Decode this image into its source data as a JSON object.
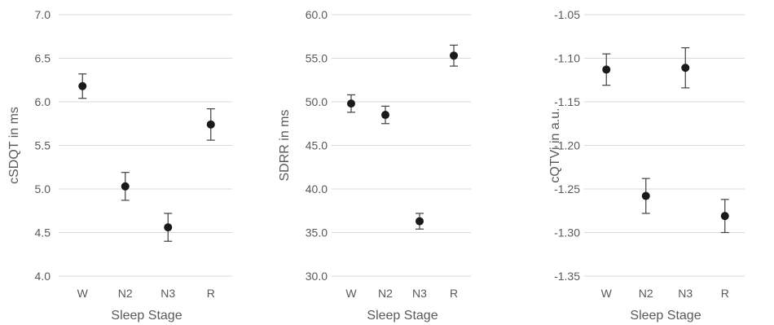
{
  "chart_data": [
    {
      "type": "scatter",
      "categories": [
        "W",
        "N2",
        "N3",
        "R"
      ],
      "values": [
        6.18,
        5.03,
        4.56,
        5.74
      ],
      "errors": [
        0.14,
        0.16,
        0.16,
        0.18
      ],
      "ylim": [
        4.0,
        7.0
      ],
      "ytick_step": 0.5,
      "ytick_labels": [
        "4.0",
        "4.5",
        "5.0",
        "5.5",
        "6.0",
        "6.5",
        "7.0"
      ],
      "xlabel": "Sleep Stage",
      "ylabel": "cSDQT in ms",
      "grid": true,
      "marker_color": "#1a1a1a"
    },
    {
      "type": "scatter",
      "categories": [
        "W",
        "N2",
        "N3",
        "R"
      ],
      "values": [
        49.8,
        48.5,
        36.3,
        55.3
      ],
      "errors": [
        1.0,
        1.0,
        0.9,
        1.2
      ],
      "ylim": [
        30.0,
        60.0
      ],
      "ytick_step": 5,
      "ytick_labels": [
        "30.0",
        "35.0",
        "40.0",
        "45.0",
        "50.0",
        "55.0",
        "60.0"
      ],
      "xlabel": "Sleep Stage",
      "ylabel": "SDRR in ms",
      "grid": true,
      "marker_color": "#1a1a1a"
    },
    {
      "type": "scatter",
      "categories": [
        "W",
        "N2",
        "N3",
        "R"
      ],
      "values": [
        -1.113,
        -1.258,
        -1.111,
        -1.281
      ],
      "errors": [
        0.018,
        0.02,
        0.023,
        0.019
      ],
      "ylim": [
        -1.35,
        -1.05
      ],
      "ytick_step": 0.05,
      "ytick_labels": [
        "-1.35",
        "-1.30",
        "-1.25",
        "-1.20",
        "-1.15",
        "-1.10",
        "-1.05"
      ],
      "xlabel": "Sleep Stage",
      "ylabel": "cQTVi in a.u.",
      "grid": true,
      "marker_color": "#1a1a1a"
    }
  ]
}
